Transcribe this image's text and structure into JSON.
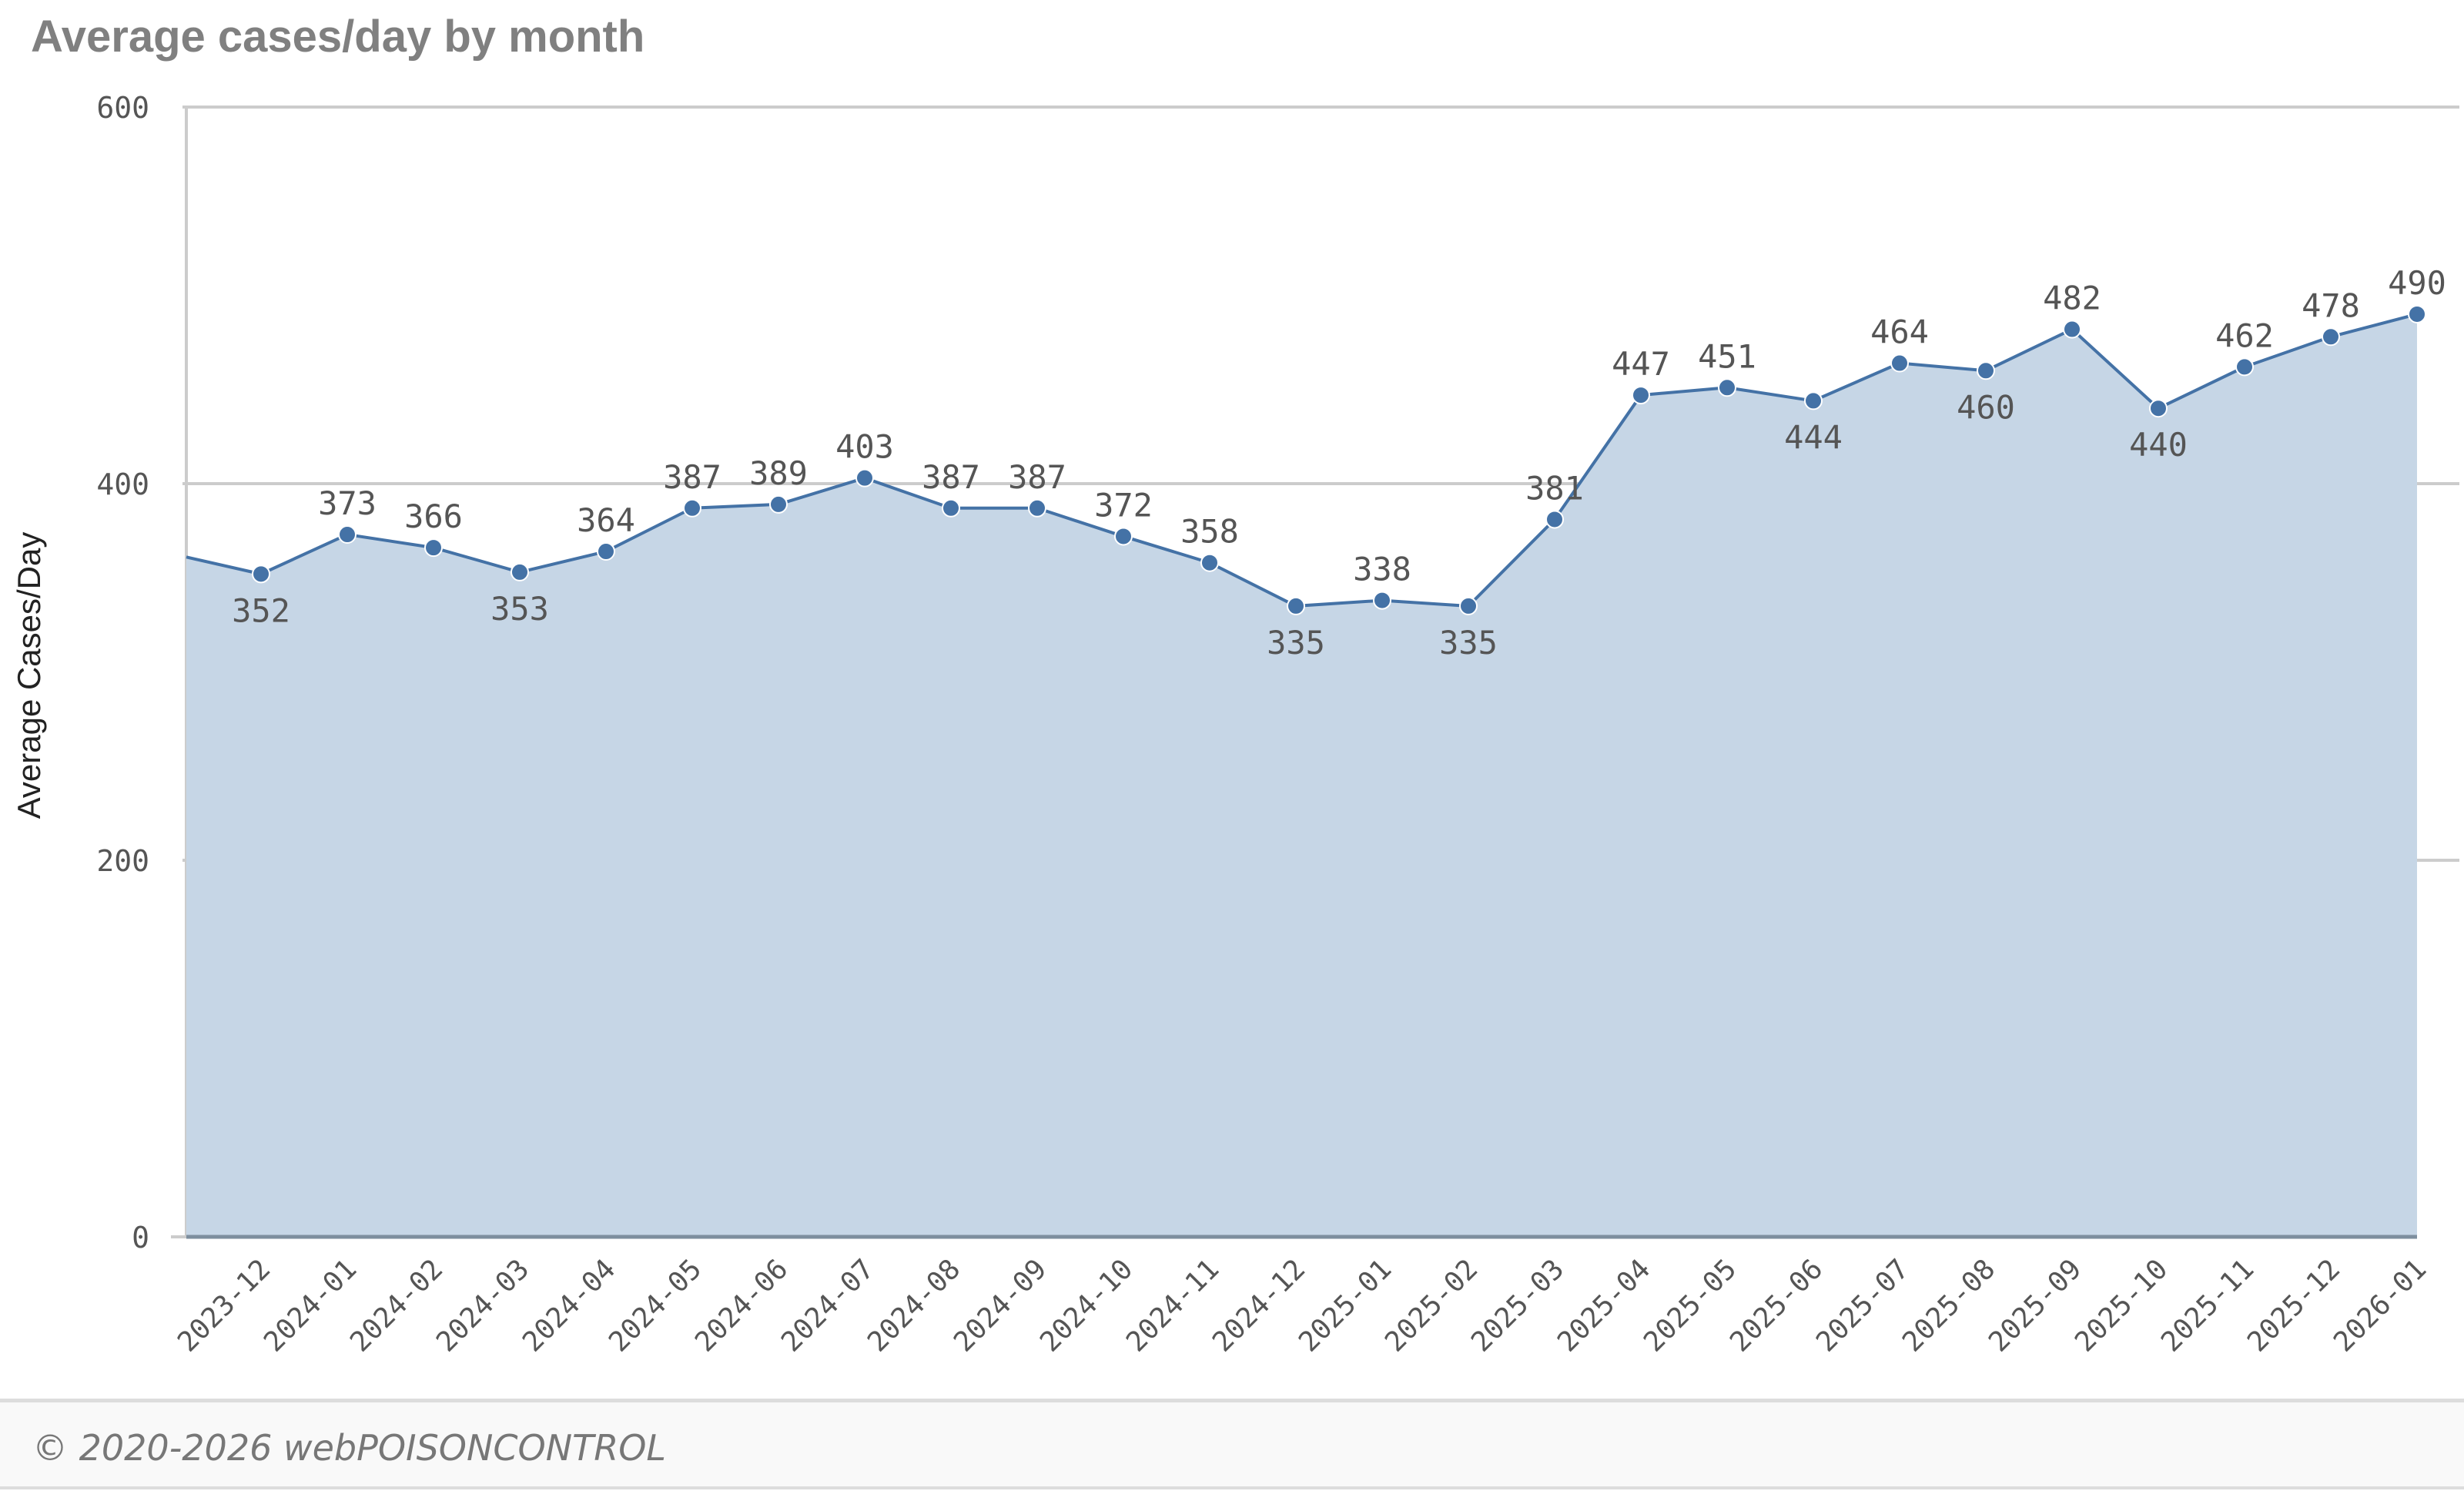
{
  "chart_data": {
    "type": "area",
    "title": "Average cases/day by month",
    "xlabel": "",
    "ylabel": "Average Cases/Day",
    "ylim": [
      0,
      600
    ],
    "yticks": [
      0,
      200,
      400,
      600
    ],
    "grid": true,
    "partial_start_value": 361,
    "categories": [
      "2023-12",
      "2024-01",
      "2024-02",
      "2024-03",
      "2024-04",
      "2024-05",
      "2024-06",
      "2024-07",
      "2024-08",
      "2024-09",
      "2024-10",
      "2024-11",
      "2024-12",
      "2025-01",
      "2025-02",
      "2025-03",
      "2025-04",
      "2025-05",
      "2025-06",
      "2025-07",
      "2025-08",
      "2025-09",
      "2025-10",
      "2025-11",
      "2025-12",
      "2026-01"
    ],
    "values": [
      352,
      373,
      366,
      353,
      364,
      387,
      389,
      403,
      387,
      387,
      372,
      358,
      335,
      338,
      335,
      381,
      447,
      451,
      444,
      464,
      460,
      482,
      440,
      462,
      478,
      490
    ],
    "colors": {
      "line": "#4472a6",
      "fill": "#c6d6e6",
      "baseline": "#7d8e9e",
      "grid": "#cccccc"
    }
  },
  "footer": {
    "copyright": "© 2020-2026 webPOISONCONTROL"
  }
}
